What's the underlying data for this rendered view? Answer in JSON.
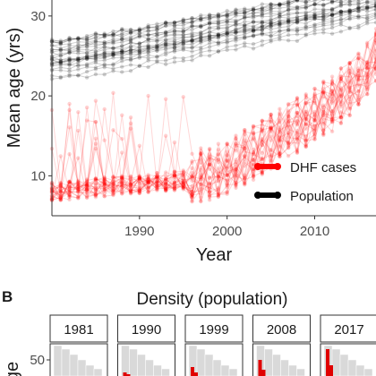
{
  "chart_data": [
    {
      "type": "line",
      "xlabel": "Year",
      "ylabel": "Mean age (yrs)",
      "xlim": [
        1980,
        2017
      ],
      "ylim": [
        5,
        32
      ],
      "x_ticks": [
        1990,
        2000,
        2010
      ],
      "y_ticks": [
        10,
        20,
        30
      ],
      "grid": false,
      "legend": {
        "placement": "bottom-right"
      },
      "series": [
        {
          "name": "DHF cases",
          "color": "#ff0000",
          "mean_trend": {
            "x": [
              1981,
              1985,
              1990,
              1995,
              2000,
              2003,
              2006,
              2009,
              2012,
              2015,
              2017
            ],
            "y": [
              8,
              8.5,
              9,
              9.5,
              11,
              13,
              15,
              17,
              19,
              22,
              25
            ]
          }
        },
        {
          "name": "Population",
          "color": "#000000",
          "mean_trend": {
            "x": [
              1981,
              1990,
              2000,
              2010,
              2017
            ],
            "y": [
              24.5,
              26,
              28,
              30,
              31.5
            ]
          }
        }
      ]
    },
    {
      "type": "histogram",
      "title": "Density (population)",
      "ylabel_partial": "ge",
      "y_ticks": [
        50
      ],
      "facets": [
        "1981",
        "1990",
        "1999",
        "2008",
        "2017"
      ]
    }
  ],
  "panel_labels": {
    "b": "B"
  }
}
